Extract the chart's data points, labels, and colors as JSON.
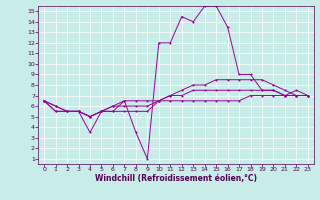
{
  "background_color": "#c8ece8",
  "grid_color": "#ffffff",
  "line_color": "#990099",
  "xlabel": "Windchill (Refroidissement éolien,°C)",
  "xlabel_color": "#550055",
  "tick_color": "#550055",
  "xlim": [
    -0.5,
    23.5
  ],
  "ylim": [
    0.5,
    15.5
  ],
  "xticks": [
    0,
    1,
    2,
    3,
    4,
    5,
    6,
    7,
    8,
    9,
    10,
    11,
    12,
    13,
    14,
    15,
    16,
    17,
    18,
    19,
    20,
    21,
    22,
    23
  ],
  "yticks": [
    1,
    2,
    3,
    4,
    5,
    6,
    7,
    8,
    9,
    10,
    11,
    12,
    13,
    14,
    15
  ],
  "series": [
    [
      6.5,
      5.5,
      5.5,
      5.5,
      3.5,
      5.5,
      5.5,
      6.5,
      3.5,
      1.0,
      12.0,
      12.0,
      14.5,
      14.0,
      15.5,
      15.5,
      13.5,
      9.0,
      9.0,
      7.5,
      7.5,
      7.0,
      7.5,
      7.0
    ],
    [
      6.5,
      5.5,
      5.5,
      5.5,
      5.0,
      5.5,
      6.0,
      6.5,
      6.5,
      6.5,
      6.5,
      6.5,
      6.5,
      6.5,
      6.5,
      6.5,
      6.5,
      6.5,
      7.0,
      7.0,
      7.0,
      7.0,
      7.0,
      7.0
    ],
    [
      6.5,
      6.0,
      5.5,
      5.5,
      5.0,
      5.5,
      5.5,
      5.5,
      5.5,
      5.5,
      6.5,
      7.0,
      7.5,
      8.0,
      8.0,
      8.5,
      8.5,
      8.5,
      8.5,
      8.5,
      8.0,
      7.5,
      7.0,
      7.0
    ],
    [
      6.5,
      6.0,
      5.5,
      5.5,
      5.0,
      5.5,
      6.0,
      6.0,
      6.0,
      6.0,
      6.5,
      7.0,
      7.0,
      7.5,
      7.5,
      7.5,
      7.5,
      7.5,
      7.5,
      7.5,
      7.5,
      7.0,
      7.0,
      7.0
    ]
  ]
}
